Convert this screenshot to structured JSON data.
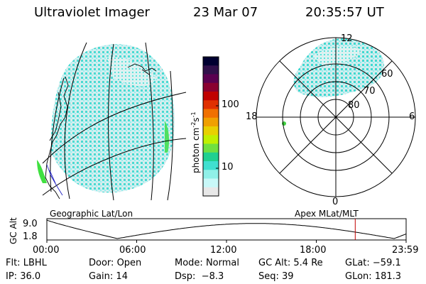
{
  "header": {
    "instrument": "Ultraviolet Imager",
    "date": "23 Mar 07",
    "time": "20:35:57 UT"
  },
  "colorbar": {
    "unit_label": "photon cm",
    "unit_exp": "-2",
    "unit_s": "s",
    "unit_s_exp": "-1",
    "ticks": [
      {
        "label": "100",
        "value": 100
      },
      {
        "label": "10",
        "value": 10
      }
    ],
    "log_scale": true,
    "colors": [
      "#000030",
      "#30104a",
      "#5a0050",
      "#8a0030",
      "#c00000",
      "#e03000",
      "#f07000",
      "#f0a000",
      "#e8d000",
      "#c0f000",
      "#70e040",
      "#20d090",
      "#40e0d0",
      "#90f0e8",
      "#c8f8f8",
      "#e8e8e8"
    ]
  },
  "polar": {
    "mlt_labels": {
      "top": "12",
      "left": "18",
      "right": "6",
      "bottom": "0"
    },
    "lat_labels": [
      "60",
      "70",
      "80"
    ]
  },
  "captions": {
    "left": "Geographic Lat/Lon",
    "right": "Apex MLat/MLT"
  },
  "timeline": {
    "ylabel": "GC Alt",
    "ymax": "9.0",
    "ymin": "1.8",
    "xticks": [
      "00:00",
      "06:00",
      "12:00",
      "18:00",
      "23:59"
    ],
    "marker_hour": 20.6,
    "marker_color": "#c00000"
  },
  "status": {
    "row1": [
      {
        "label": "Flt:",
        "value": "LBHL"
      },
      {
        "label": "Door:",
        "value": "Open"
      },
      {
        "label": "Mode:",
        "value": "Normal"
      },
      {
        "label": "GC Alt:",
        "value": "5.4 Re"
      },
      {
        "label": "GLat:",
        "value": "−59.1"
      }
    ],
    "row2": [
      {
        "label": "IP:",
        "value": "36.0"
      },
      {
        "label": "Gain:",
        "value": "14"
      },
      {
        "label": "Dsp:",
        "value": "−8.3"
      },
      {
        "label": "Seq:",
        "value": "39"
      },
      {
        "label": "GLon:",
        "value": "181.3"
      }
    ]
  }
}
